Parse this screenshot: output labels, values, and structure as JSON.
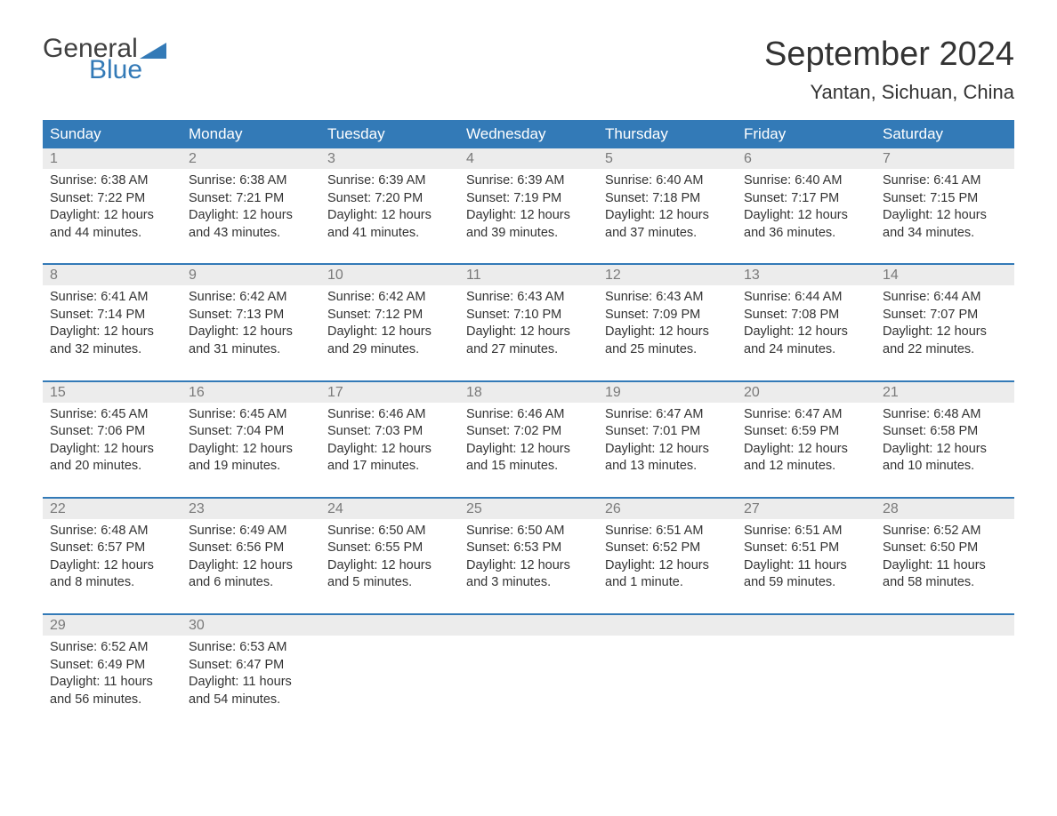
{
  "logo": {
    "text_top": "General",
    "text_bottom": "Blue",
    "general_color": "#404040",
    "blue_color": "#337ab7",
    "triangle_color": "#337ab7"
  },
  "header": {
    "month_year": "September 2024",
    "location": "Yantan, Sichuan, China"
  },
  "styling": {
    "header_bg": "#337ab7",
    "header_text_color": "#ffffff",
    "daynum_bg": "#ececec",
    "daynum_color": "#7a7a7a",
    "body_text_color": "#333333",
    "week_divider_color": "#337ab7",
    "background": "#ffffff"
  },
  "weekdays": [
    "Sunday",
    "Monday",
    "Tuesday",
    "Wednesday",
    "Thursday",
    "Friday",
    "Saturday"
  ],
  "weeks": [
    [
      {
        "day": "1",
        "sunrise": "Sunrise: 6:38 AM",
        "sunset": "Sunset: 7:22 PM",
        "daylight1": "Daylight: 12 hours",
        "daylight2": "and 44 minutes."
      },
      {
        "day": "2",
        "sunrise": "Sunrise: 6:38 AM",
        "sunset": "Sunset: 7:21 PM",
        "daylight1": "Daylight: 12 hours",
        "daylight2": "and 43 minutes."
      },
      {
        "day": "3",
        "sunrise": "Sunrise: 6:39 AM",
        "sunset": "Sunset: 7:20 PM",
        "daylight1": "Daylight: 12 hours",
        "daylight2": "and 41 minutes."
      },
      {
        "day": "4",
        "sunrise": "Sunrise: 6:39 AM",
        "sunset": "Sunset: 7:19 PM",
        "daylight1": "Daylight: 12 hours",
        "daylight2": "and 39 minutes."
      },
      {
        "day": "5",
        "sunrise": "Sunrise: 6:40 AM",
        "sunset": "Sunset: 7:18 PM",
        "daylight1": "Daylight: 12 hours",
        "daylight2": "and 37 minutes."
      },
      {
        "day": "6",
        "sunrise": "Sunrise: 6:40 AM",
        "sunset": "Sunset: 7:17 PM",
        "daylight1": "Daylight: 12 hours",
        "daylight2": "and 36 minutes."
      },
      {
        "day": "7",
        "sunrise": "Sunrise: 6:41 AM",
        "sunset": "Sunset: 7:15 PM",
        "daylight1": "Daylight: 12 hours",
        "daylight2": "and 34 minutes."
      }
    ],
    [
      {
        "day": "8",
        "sunrise": "Sunrise: 6:41 AM",
        "sunset": "Sunset: 7:14 PM",
        "daylight1": "Daylight: 12 hours",
        "daylight2": "and 32 minutes."
      },
      {
        "day": "9",
        "sunrise": "Sunrise: 6:42 AM",
        "sunset": "Sunset: 7:13 PM",
        "daylight1": "Daylight: 12 hours",
        "daylight2": "and 31 minutes."
      },
      {
        "day": "10",
        "sunrise": "Sunrise: 6:42 AM",
        "sunset": "Sunset: 7:12 PM",
        "daylight1": "Daylight: 12 hours",
        "daylight2": "and 29 minutes."
      },
      {
        "day": "11",
        "sunrise": "Sunrise: 6:43 AM",
        "sunset": "Sunset: 7:10 PM",
        "daylight1": "Daylight: 12 hours",
        "daylight2": "and 27 minutes."
      },
      {
        "day": "12",
        "sunrise": "Sunrise: 6:43 AM",
        "sunset": "Sunset: 7:09 PM",
        "daylight1": "Daylight: 12 hours",
        "daylight2": "and 25 minutes."
      },
      {
        "day": "13",
        "sunrise": "Sunrise: 6:44 AM",
        "sunset": "Sunset: 7:08 PM",
        "daylight1": "Daylight: 12 hours",
        "daylight2": "and 24 minutes."
      },
      {
        "day": "14",
        "sunrise": "Sunrise: 6:44 AM",
        "sunset": "Sunset: 7:07 PM",
        "daylight1": "Daylight: 12 hours",
        "daylight2": "and 22 minutes."
      }
    ],
    [
      {
        "day": "15",
        "sunrise": "Sunrise: 6:45 AM",
        "sunset": "Sunset: 7:06 PM",
        "daylight1": "Daylight: 12 hours",
        "daylight2": "and 20 minutes."
      },
      {
        "day": "16",
        "sunrise": "Sunrise: 6:45 AM",
        "sunset": "Sunset: 7:04 PM",
        "daylight1": "Daylight: 12 hours",
        "daylight2": "and 19 minutes."
      },
      {
        "day": "17",
        "sunrise": "Sunrise: 6:46 AM",
        "sunset": "Sunset: 7:03 PM",
        "daylight1": "Daylight: 12 hours",
        "daylight2": "and 17 minutes."
      },
      {
        "day": "18",
        "sunrise": "Sunrise: 6:46 AM",
        "sunset": "Sunset: 7:02 PM",
        "daylight1": "Daylight: 12 hours",
        "daylight2": "and 15 minutes."
      },
      {
        "day": "19",
        "sunrise": "Sunrise: 6:47 AM",
        "sunset": "Sunset: 7:01 PM",
        "daylight1": "Daylight: 12 hours",
        "daylight2": "and 13 minutes."
      },
      {
        "day": "20",
        "sunrise": "Sunrise: 6:47 AM",
        "sunset": "Sunset: 6:59 PM",
        "daylight1": "Daylight: 12 hours",
        "daylight2": "and 12 minutes."
      },
      {
        "day": "21",
        "sunrise": "Sunrise: 6:48 AM",
        "sunset": "Sunset: 6:58 PM",
        "daylight1": "Daylight: 12 hours",
        "daylight2": "and 10 minutes."
      }
    ],
    [
      {
        "day": "22",
        "sunrise": "Sunrise: 6:48 AM",
        "sunset": "Sunset: 6:57 PM",
        "daylight1": "Daylight: 12 hours",
        "daylight2": "and 8 minutes."
      },
      {
        "day": "23",
        "sunrise": "Sunrise: 6:49 AM",
        "sunset": "Sunset: 6:56 PM",
        "daylight1": "Daylight: 12 hours",
        "daylight2": "and 6 minutes."
      },
      {
        "day": "24",
        "sunrise": "Sunrise: 6:50 AM",
        "sunset": "Sunset: 6:55 PM",
        "daylight1": "Daylight: 12 hours",
        "daylight2": "and 5 minutes."
      },
      {
        "day": "25",
        "sunrise": "Sunrise: 6:50 AM",
        "sunset": "Sunset: 6:53 PM",
        "daylight1": "Daylight: 12 hours",
        "daylight2": "and 3 minutes."
      },
      {
        "day": "26",
        "sunrise": "Sunrise: 6:51 AM",
        "sunset": "Sunset: 6:52 PM",
        "daylight1": "Daylight: 12 hours",
        "daylight2": "and 1 minute."
      },
      {
        "day": "27",
        "sunrise": "Sunrise: 6:51 AM",
        "sunset": "Sunset: 6:51 PM",
        "daylight1": "Daylight: 11 hours",
        "daylight2": "and 59 minutes."
      },
      {
        "day": "28",
        "sunrise": "Sunrise: 6:52 AM",
        "sunset": "Sunset: 6:50 PM",
        "daylight1": "Daylight: 11 hours",
        "daylight2": "and 58 minutes."
      }
    ],
    [
      {
        "day": "29",
        "sunrise": "Sunrise: 6:52 AM",
        "sunset": "Sunset: 6:49 PM",
        "daylight1": "Daylight: 11 hours",
        "daylight2": "and 56 minutes."
      },
      {
        "day": "30",
        "sunrise": "Sunrise: 6:53 AM",
        "sunset": "Sunset: 6:47 PM",
        "daylight1": "Daylight: 11 hours",
        "daylight2": "and 54 minutes."
      },
      {
        "day": "",
        "empty": true
      },
      {
        "day": "",
        "empty": true
      },
      {
        "day": "",
        "empty": true
      },
      {
        "day": "",
        "empty": true
      },
      {
        "day": "",
        "empty": true
      }
    ]
  ]
}
